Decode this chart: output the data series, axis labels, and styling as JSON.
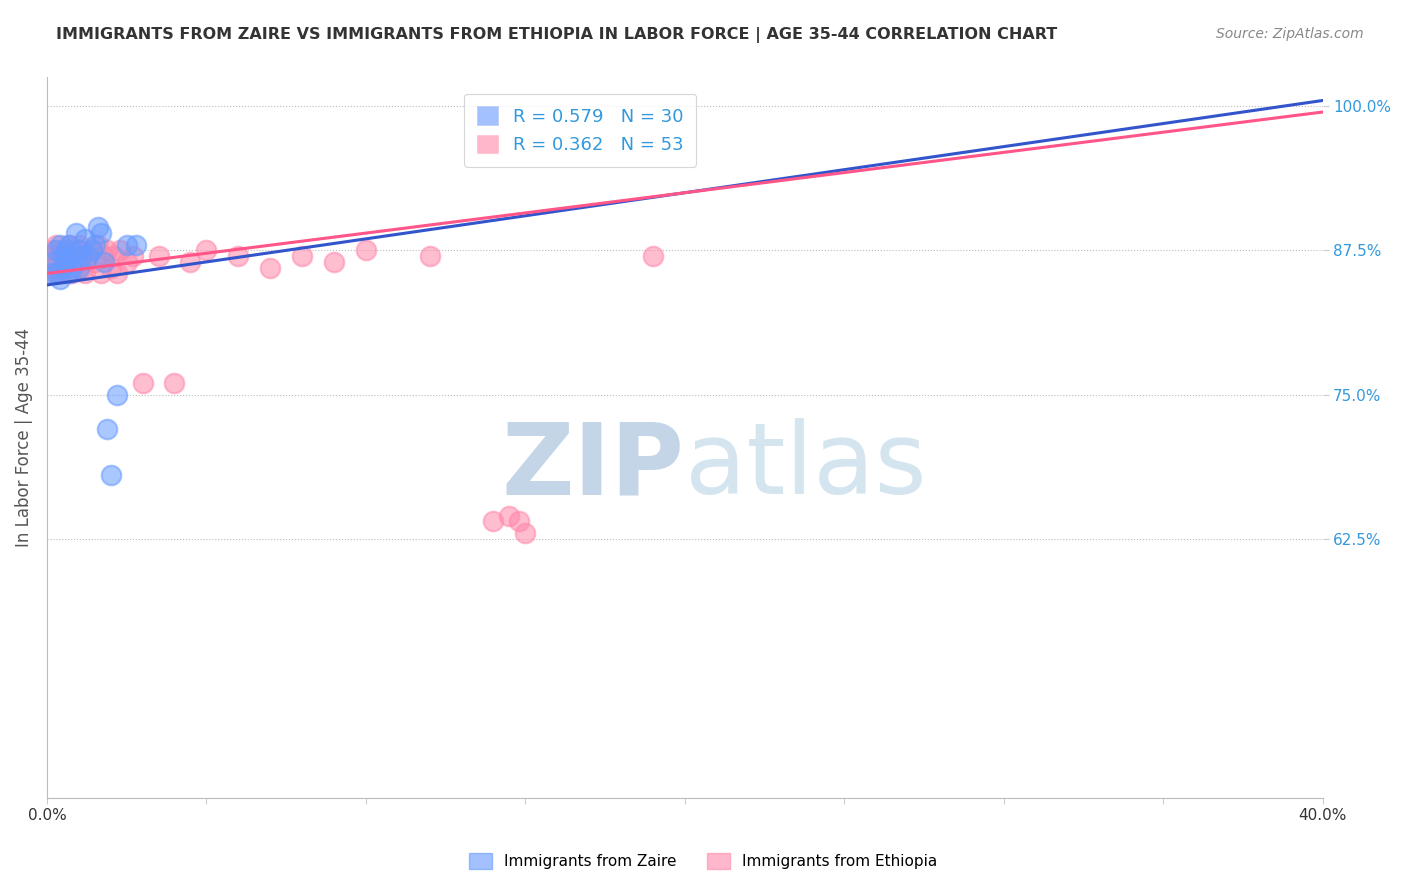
{
  "title": "IMMIGRANTS FROM ZAIRE VS IMMIGRANTS FROM ETHIOPIA IN LABOR FORCE | AGE 35-44 CORRELATION CHART",
  "source": "Source: ZipAtlas.com",
  "ylabel": "In Labor Force | Age 35-44",
  "xlim": [
    0.0,
    0.4
  ],
  "ylim": [
    0.4,
    1.025
  ],
  "ytick_values": [
    1.0,
    0.875,
    0.75,
    0.625
  ],
  "ytick_labels": [
    "100.0%",
    "87.5%",
    "75.0%",
    "62.5%"
  ],
  "zaire_color": "#6699ff",
  "ethiopia_color": "#ff88aa",
  "zaire_line_color": "#3355cc",
  "ethiopia_line_color": "#ff5588",
  "zaire_R": 0.579,
  "zaire_N": 30,
  "ethiopia_R": 0.362,
  "ethiopia_N": 53,
  "zaire_points_x": [
    0.001,
    0.002,
    0.003,
    0.003,
    0.004,
    0.004,
    0.005,
    0.005,
    0.006,
    0.006,
    0.007,
    0.007,
    0.008,
    0.008,
    0.009,
    0.01,
    0.01,
    0.011,
    0.012,
    0.013,
    0.014,
    0.015,
    0.016,
    0.017,
    0.018,
    0.019,
    0.02,
    0.022,
    0.025,
    0.028
  ],
  "zaire_points_y": [
    0.855,
    0.865,
    0.875,
    0.855,
    0.88,
    0.85,
    0.87,
    0.86,
    0.875,
    0.865,
    0.88,
    0.855,
    0.87,
    0.86,
    0.89,
    0.875,
    0.86,
    0.87,
    0.885,
    0.87,
    0.875,
    0.88,
    0.895,
    0.89,
    0.865,
    0.72,
    0.68,
    0.75,
    0.88,
    0.88
  ],
  "ethiopia_points_x": [
    0.001,
    0.001,
    0.002,
    0.002,
    0.003,
    0.003,
    0.004,
    0.004,
    0.005,
    0.005,
    0.006,
    0.006,
    0.007,
    0.007,
    0.008,
    0.008,
    0.009,
    0.009,
    0.01,
    0.01,
    0.011,
    0.011,
    0.012,
    0.012,
    0.013,
    0.014,
    0.015,
    0.016,
    0.017,
    0.018,
    0.019,
    0.02,
    0.021,
    0.022,
    0.023,
    0.025,
    0.027,
    0.03,
    0.035,
    0.04,
    0.045,
    0.05,
    0.06,
    0.07,
    0.08,
    0.09,
    0.1,
    0.12,
    0.15,
    0.19,
    0.14,
    0.145,
    0.148
  ],
  "ethiopia_points_y": [
    0.86,
    0.87,
    0.875,
    0.855,
    0.865,
    0.88,
    0.855,
    0.87,
    0.875,
    0.86,
    0.87,
    0.855,
    0.865,
    0.88,
    0.87,
    0.855,
    0.875,
    0.865,
    0.88,
    0.87,
    0.86,
    0.875,
    0.865,
    0.855,
    0.87,
    0.875,
    0.865,
    0.88,
    0.855,
    0.87,
    0.875,
    0.86,
    0.87,
    0.855,
    0.875,
    0.865,
    0.87,
    0.76,
    0.87,
    0.76,
    0.865,
    0.875,
    0.87,
    0.86,
    0.87,
    0.865,
    0.875,
    0.87,
    0.63,
    0.87,
    0.64,
    0.645,
    0.64
  ],
  "zaire_trend_x": [
    0.0,
    0.4
  ],
  "zaire_trend_y": [
    0.845,
    1.005
  ],
  "ethiopia_trend_x": [
    0.0,
    0.4
  ],
  "ethiopia_trend_y": [
    0.855,
    0.995
  ],
  "legend_entries": [
    "Immigrants from Zaire",
    "Immigrants from Ethiopia"
  ],
  "background_color": "#ffffff"
}
